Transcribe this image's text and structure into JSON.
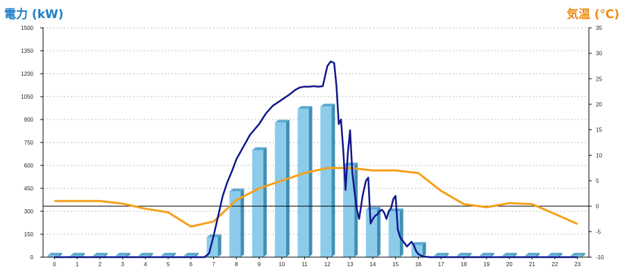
{
  "chart_data": {
    "type": "bar",
    "title": "",
    "left_axis_label": "電力 (kW)",
    "right_axis_label": "気温 (℃)",
    "categories": [
      "0",
      "1",
      "2",
      "3",
      "4",
      "5",
      "6",
      "7",
      "8",
      "9",
      "10",
      "11",
      "12",
      "13",
      "14",
      "15",
      "16",
      "17",
      "18",
      "19",
      "20",
      "21",
      "22",
      "23"
    ],
    "ylim_left": [
      0,
      1500
    ],
    "yticks_left": [
      0,
      150,
      300,
      450,
      600,
      750,
      900,
      1050,
      1200,
      1350,
      1500
    ],
    "ylim_right": [
      -10,
      35
    ],
    "yticks_right": [
      -10,
      -5,
      0,
      5,
      10,
      15,
      20,
      25,
      30,
      35
    ],
    "grid": true,
    "reference_line_temp": 0,
    "series": [
      {
        "type": "bar",
        "axis": "left",
        "values": [
          10,
          10,
          10,
          10,
          10,
          10,
          10,
          130,
          430,
          700,
          880,
          970,
          985,
          600,
          310,
          300,
          80,
          10,
          10,
          10,
          10,
          10,
          10,
          10
        ]
      },
      {
        "type": "line",
        "axis": "left",
        "x": [
          0,
          6.6,
          6.8,
          7,
          7.2,
          7.4,
          7.6,
          7.8,
          8,
          8.3,
          8.6,
          9,
          9.3,
          9.6,
          10,
          10.3,
          10.6,
          10.8,
          11,
          11.2,
          11.4,
          11.6,
          11.8,
          12,
          12.15,
          12.3,
          12.4,
          12.5,
          12.6,
          12.7,
          12.8,
          12.9,
          13,
          13.1,
          13.2,
          13.3,
          13.4,
          13.55,
          13.7,
          13.8,
          13.9,
          14,
          14.1,
          14.2,
          14.3,
          14.4,
          14.5,
          14.6,
          14.7,
          14.8,
          14.9,
          15,
          15.1,
          15.2,
          15.3,
          15.5,
          15.7,
          15.8,
          15.9,
          16,
          16.2,
          16.5,
          17,
          23
        ],
        "values": [
          0,
          0,
          25,
          140,
          270,
          400,
          490,
          560,
          640,
          720,
          800,
          870,
          940,
          990,
          1030,
          1060,
          1095,
          1110,
          1115,
          1115,
          1118,
          1115,
          1118,
          1250,
          1280,
          1270,
          1120,
          870,
          900,
          700,
          440,
          680,
          830,
          550,
          420,
          310,
          250,
          400,
          500,
          520,
          220,
          250,
          270,
          280,
          300,
          310,
          290,
          250,
          300,
          320,
          380,
          400,
          180,
          130,
          110,
          70,
          100,
          80,
          40,
          20,
          5,
          0,
          0,
          0
        ]
      },
      {
        "type": "line",
        "axis": "right",
        "values": [
          1,
          1,
          1,
          0.5,
          -0.5,
          -1.2,
          -4,
          -3,
          1.2,
          3.5,
          5,
          6.5,
          7.5,
          7.5,
          7,
          7,
          6.5,
          3,
          0.4,
          -0.2,
          0.6,
          0.4,
          -1.5,
          -3.5
        ]
      }
    ]
  }
}
